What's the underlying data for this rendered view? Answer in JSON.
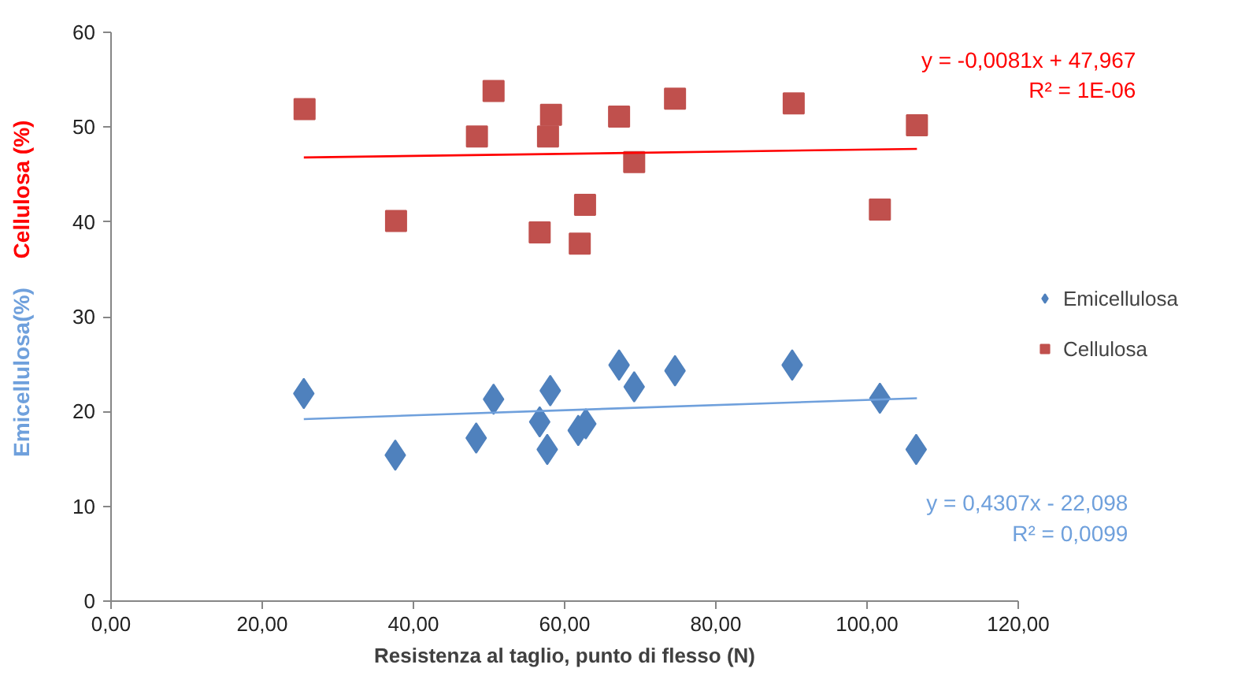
{
  "chart_data": {
    "type": "scatter",
    "xlabel": "Resistenza al taglio, punto di flesso (N)",
    "ylabel": "Emicellulosa(%)  Cellulosa (%)",
    "xlim": [
      0,
      120
    ],
    "ylim": [
      0,
      60
    ],
    "xticks": [
      {
        "value": 0,
        "label": "0,00"
      },
      {
        "value": 20,
        "label": "20,00"
      },
      {
        "value": 40,
        "label": "40,00"
      },
      {
        "value": 60,
        "label": "60,00"
      },
      {
        "value": 80,
        "label": "80,00"
      },
      {
        "value": 100,
        "label": "100,00"
      },
      {
        "value": 120,
        "label": "120,00"
      }
    ],
    "yticks": [
      0,
      10,
      20,
      30,
      40,
      50,
      60
    ],
    "grid": false,
    "legend": "right",
    "series": [
      {
        "name": "Emicellulosa",
        "color": "#4f81bd",
        "marker": "diamond",
        "x": [
          25.5,
          37.6,
          48.3,
          50.6,
          56.7,
          58.1,
          57.7,
          61.8,
          62.8,
          67.2,
          69.2,
          74.6,
          90.1,
          101.7,
          106.5
        ],
        "values": [
          21.9,
          15.4,
          17.2,
          21.3,
          18.9,
          22.2,
          16.0,
          18.0,
          18.7,
          24.9,
          22.6,
          24.3,
          24.9,
          21.4,
          16.0
        ]
      },
      {
        "name": "Cellulosa",
        "color": "#c0504d",
        "marker": "square",
        "x": [
          25.6,
          37.7,
          48.4,
          50.6,
          58.2,
          57.8,
          67.2,
          69.2,
          62.7,
          56.7,
          62.0,
          74.6,
          90.3,
          106.6,
          101.7
        ],
        "values": [
          51.9,
          40.1,
          49.0,
          53.8,
          51.3,
          49.0,
          51.1,
          46.3,
          41.8,
          38.9,
          37.7,
          53.0,
          52.5,
          50.2,
          41.3
        ]
      },
      {
        "type": "line",
        "color": "#6fa0dc",
        "marker": "none",
        "x": [
          25.5,
          106.6
        ],
        "values": [
          19.2,
          21.4
        ]
      },
      {
        "type": "line",
        "color": "#ff0000",
        "marker": "none",
        "x": [
          25.5,
          106.6
        ],
        "values": [
          46.8,
          47.7
        ]
      }
    ],
    "annotations": [
      "y = 0,4307x - 22,098\nR² = 0,0099",
      "y = -0,0081x + 47,967\nR² = 1E-06"
    ]
  }
}
